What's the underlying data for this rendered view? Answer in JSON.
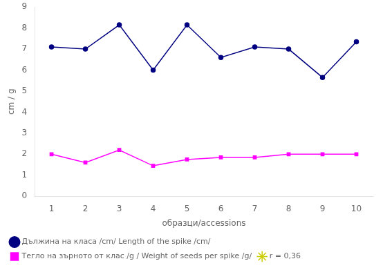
{
  "chart_data": {
    "type": "line",
    "xlabel": "образци/accessions",
    "ylabel": "cm / g",
    "x": [
      1,
      2,
      3,
      4,
      5,
      6,
      7,
      8,
      9,
      10
    ],
    "series": [
      {
        "name": "Дължина на класа /cm/ Length of the spike /cm/",
        "color": "#000080",
        "marker": "circle",
        "values": [
          7.1,
          7.0,
          8.15,
          6.0,
          8.15,
          6.6,
          7.1,
          7.0,
          5.65,
          7.35
        ]
      },
      {
        "name": "Тегло на зърното от клас /g / Weight of seeds per spike /g/",
        "color": "#FF00FF",
        "marker": "square",
        "values": [
          2.0,
          1.6,
          2.2,
          1.45,
          1.75,
          1.85,
          1.85,
          2.0,
          2.0,
          2.0
        ]
      },
      {
        "name": "r = 0,36",
        "color": "#CCCC00",
        "marker": "star",
        "values": [
          null,
          null,
          null,
          null,
          null,
          null,
          null,
          null,
          null,
          null
        ]
      }
    ],
    "xlim": [
      0.5,
      10.5
    ],
    "xticks": [
      1,
      2,
      3,
      4,
      5,
      6,
      7,
      8,
      9,
      10
    ],
    "ylim": [
      0,
      9
    ],
    "yticks": [
      0,
      1,
      2,
      3,
      4,
      5,
      6,
      7,
      8,
      9
    ],
    "grid": false,
    "legend": "bottom"
  }
}
